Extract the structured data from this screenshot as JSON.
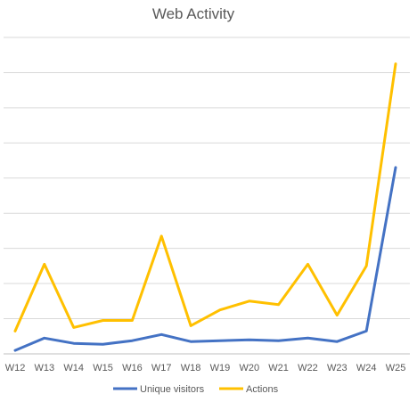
{
  "chart_data": {
    "type": "line",
    "title": "Web Activity",
    "categories": [
      "W12",
      "W13",
      "W14",
      "W15",
      "W16",
      "W17",
      "W18",
      "W19",
      "W20",
      "W21",
      "W22",
      "W23",
      "W24",
      "W25"
    ],
    "series": [
      {
        "name": "Unique visitors",
        "color": "#4472C4",
        "values": [
          2,
          9,
          6,
          5.5,
          7.5,
          11,
          7,
          7.5,
          8,
          7.5,
          9,
          7,
          13,
          106
        ]
      },
      {
        "name": "Actions",
        "color": "#FFC000",
        "values": [
          13,
          51,
          15,
          19,
          19,
          67,
          16,
          25,
          30,
          28,
          51,
          22,
          50,
          165
        ]
      }
    ],
    "ylim": [
      0,
      180
    ],
    "grid": true,
    "legend_position": "bottom"
  }
}
